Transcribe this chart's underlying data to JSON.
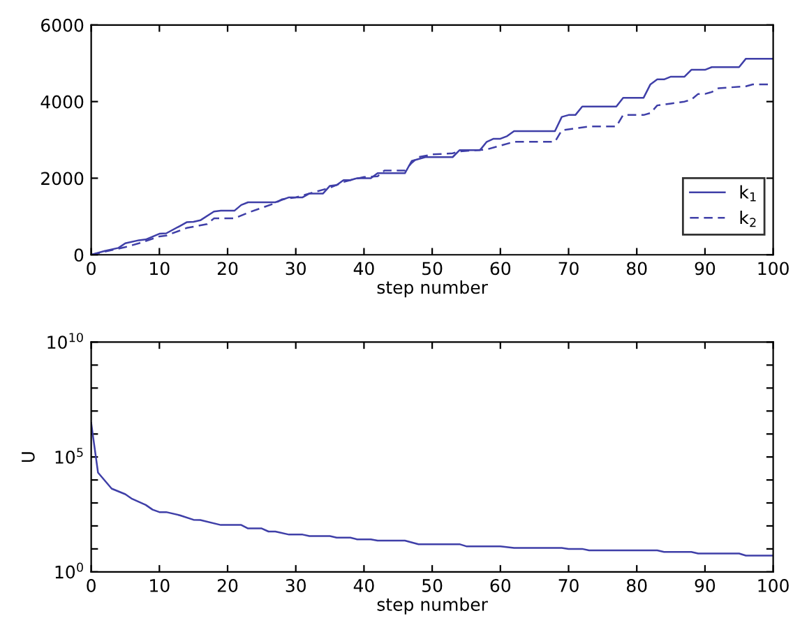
{
  "chart_data": [
    {
      "type": "line",
      "xlabel": "step number",
      "xlim": [
        0,
        100
      ],
      "xticks": [
        0,
        10,
        20,
        30,
        40,
        50,
        60,
        70,
        80,
        90,
        100
      ],
      "ylim": [
        0,
        6000
      ],
      "yticks": [
        0,
        2000,
        4000,
        6000
      ],
      "grid": false,
      "legend": "lower right",
      "series": [
        {
          "name": "k$_{1}$",
          "color": "#3f3fa8",
          "line_style": "solid",
          "x": [
            0,
            2,
            4,
            5,
            7,
            8,
            10,
            11,
            13,
            14,
            15,
            16,
            18,
            19,
            21,
            22,
            23,
            27,
            29,
            31,
            32,
            34,
            35,
            36,
            37,
            38,
            39,
            41,
            42,
            46,
            47,
            48,
            49,
            53,
            54,
            57,
            58,
            59,
            60,
            61,
            62,
            68,
            69,
            70,
            71,
            72,
            77,
            78,
            81,
            82,
            83,
            84,
            85,
            87,
            88,
            90,
            91,
            95,
            96,
            100
          ],
          "values": [
            0,
            100,
            180,
            300,
            380,
            400,
            550,
            560,
            750,
            850,
            860,
            900,
            1130,
            1150,
            1150,
            1300,
            1370,
            1370,
            1500,
            1500,
            1600,
            1600,
            1800,
            1820,
            1950,
            1950,
            2000,
            2000,
            2130,
            2130,
            2450,
            2500,
            2550,
            2550,
            2730,
            2730,
            2950,
            3030,
            3030,
            3100,
            3230,
            3230,
            3600,
            3650,
            3650,
            3870,
            3870,
            4100,
            4100,
            4450,
            4580,
            4580,
            4650,
            4650,
            4830,
            4830,
            4900,
            4900,
            5120,
            5120
          ]
        },
        {
          "name": "k$_{2}$",
          "color": "#3f3fa8",
          "line_style": "dashed",
          "x": [
            0,
            5,
            7,
            10,
            11,
            14,
            17,
            18,
            21,
            23,
            27,
            28,
            30,
            31,
            33,
            35,
            37,
            38,
            40,
            42,
            43,
            46,
            47,
            48,
            50,
            53,
            54,
            58,
            60,
            62,
            68,
            69,
            73,
            77,
            78,
            81,
            82,
            83,
            85,
            87,
            88,
            89,
            90,
            91,
            92,
            96,
            97,
            100
          ],
          "values": [
            0,
            200,
            300,
            480,
            500,
            700,
            800,
            950,
            950,
            1100,
            1350,
            1450,
            1500,
            1550,
            1650,
            1750,
            1900,
            1950,
            2030,
            2050,
            2200,
            2200,
            2400,
            2550,
            2620,
            2650,
            2700,
            2750,
            2850,
            2950,
            2950,
            3250,
            3350,
            3350,
            3650,
            3650,
            3700,
            3900,
            3950,
            4000,
            4050,
            4200,
            4200,
            4250,
            4350,
            4400,
            4450,
            4450
          ]
        }
      ]
    },
    {
      "type": "line",
      "xlabel": "step number",
      "ylabel": "U",
      "log": "y",
      "xlim": [
        0,
        100
      ],
      "xticks": [
        0,
        10,
        20,
        30,
        40,
        50,
        60,
        70,
        80,
        90,
        100
      ],
      "ylim": [
        1,
        10000000000
      ],
      "yticks": [
        {
          "value": 1,
          "label": "10$^{0}$"
        },
        {
          "value": 10,
          "label": null
        },
        {
          "value": 100,
          "label": null
        },
        {
          "value": 1000,
          "label": null
        },
        {
          "value": 10000,
          "label": null
        },
        {
          "value": 100000,
          "label": "10$^{5}$"
        },
        {
          "value": 1000000,
          "label": null
        },
        {
          "value": 10000000,
          "label": null
        },
        {
          "value": 100000000,
          "label": null
        },
        {
          "value": 1000000000,
          "label": null
        },
        {
          "value": 10000000000,
          "label": "10$^{10}$"
        }
      ],
      "grid": false,
      "legend": false,
      "series": [
        {
          "color": "#3f3fa8",
          "line_style": "solid",
          "x": [
            0,
            1,
            3,
            5,
            6,
            8,
            9,
            10,
            11,
            13,
            15,
            16,
            19,
            22,
            23,
            25,
            26,
            27,
            29,
            31,
            32,
            35,
            36,
            38,
            39,
            41,
            42,
            46,
            48,
            54,
            55,
            60,
            62,
            69,
            70,
            72,
            73,
            83,
            84,
            88,
            89,
            95,
            96,
            100
          ],
          "values": [
            3000000,
            21000,
            4200,
            2400,
            1500,
            820,
            510,
            400,
            400,
            290,
            185,
            180,
            110,
            110,
            78,
            78,
            57,
            57,
            42,
            42,
            36,
            36,
            31,
            31,
            26,
            26,
            23,
            23,
            16,
            16,
            13,
            13,
            11,
            11,
            10,
            10,
            8.6,
            8.6,
            7.4,
            7.4,
            6.3,
            6.3,
            5.1,
            5.1
          ]
        }
      ]
    }
  ]
}
